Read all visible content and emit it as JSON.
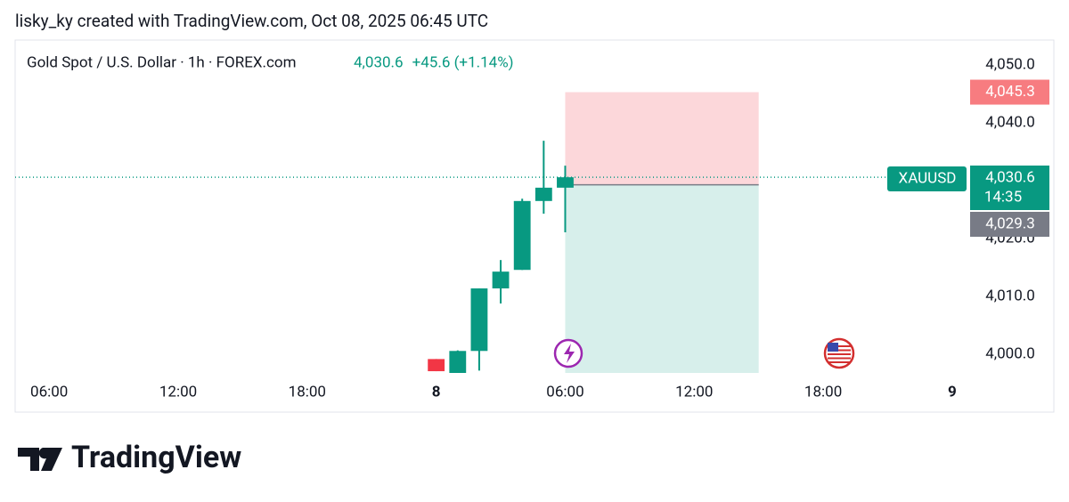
{
  "header": "lisky_ky created with TradingView.com, Oct 08, 2025 06:45 UTC",
  "chart_data": {
    "type": "candlestick",
    "title": "Gold Spot / U.S. Dollar · 1h · FOREX.com",
    "symbol": "XAUUSD",
    "last_price": {
      "value": 4030.6,
      "label": "4,030.6"
    },
    "change_label": "+45.6 (+1.14%)",
    "countdown": "14:35",
    "up_color": "#089981",
    "down_color": "#f23645",
    "x": [
      "2025-10-08 00:00",
      "2025-10-08 01:00",
      "2025-10-08 02:00",
      "2025-10-08 03:00",
      "2025-10-08 04:00",
      "2025-10-08 05:00",
      "2025-10-08 06:00"
    ],
    "open": [
      3999.2,
      3995.5,
      4000.6,
      4011.4,
      4014.6,
      4026.5,
      4028.8
    ],
    "high": [
      3999.2,
      4000.7,
      4011.4,
      4016.3,
      4026.9,
      4036.9,
      4032.6
    ],
    "low": [
      3997.1,
      3995.0,
      3997.2,
      4008.8,
      4014.6,
      4024.3,
      4021.1
    ],
    "close": [
      3997.1,
      4000.6,
      4011.4,
      4014.3,
      4026.5,
      4028.8,
      4030.6
    ],
    "position": {
      "entry": {
        "value": 4029.3,
        "label": "4,029.3"
      },
      "stop": {
        "value": 4045.3,
        "label": "4,045.3"
      },
      "start": "2025-10-08 06:00",
      "end": "2025-10-08 15:00"
    },
    "xlim": [
      "2025-10-07 04:25",
      "2025-10-09 00:40"
    ],
    "xticks": [
      {
        "value": "2025-10-07 06:00",
        "label": "06:00"
      },
      {
        "value": "2025-10-07 12:00",
        "label": "12:00"
      },
      {
        "value": "2025-10-07 18:00",
        "label": "18:00"
      },
      {
        "value": "2025-10-08 00:00",
        "label": "8"
      },
      {
        "value": "2025-10-08 06:00",
        "label": "06:00"
      },
      {
        "value": "2025-10-08 12:00",
        "label": "12:00"
      },
      {
        "value": "2025-10-08 18:00",
        "label": "18:00"
      },
      {
        "value": "2025-10-09 00:00",
        "label": "9"
      }
    ],
    "ylim": [
      3996.8,
      4054.3
    ],
    "yticks": [
      {
        "value": 4000,
        "label": "4,000.0"
      },
      {
        "value": 4010,
        "label": "4,010.0"
      },
      {
        "value": 4020,
        "label": "4,020.0"
      },
      {
        "value": 4040,
        "label": "4,040.0"
      },
      {
        "value": 4050,
        "label": "4,050.0"
      }
    ]
  },
  "footer": {
    "logo": "TradingView"
  }
}
